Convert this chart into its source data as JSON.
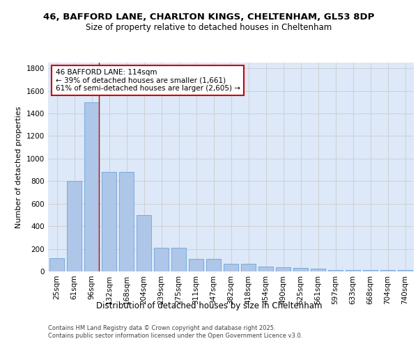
{
  "title1": "46, BAFFORD LANE, CHARLTON KINGS, CHELTENHAM, GL53 8DP",
  "title2": "Size of property relative to detached houses in Cheltenham",
  "xlabel": "Distribution of detached houses by size in Cheltenham",
  "ylabel": "Number of detached properties",
  "categories": [
    "25sqm",
    "61sqm",
    "96sqm",
    "132sqm",
    "168sqm",
    "204sqm",
    "239sqm",
    "275sqm",
    "311sqm",
    "347sqm",
    "382sqm",
    "418sqm",
    "454sqm",
    "490sqm",
    "525sqm",
    "561sqm",
    "597sqm",
    "633sqm",
    "668sqm",
    "704sqm",
    "740sqm"
  ],
  "values": [
    120,
    800,
    1500,
    880,
    880,
    500,
    210,
    210,
    110,
    110,
    65,
    65,
    45,
    35,
    30,
    25,
    10,
    10,
    10,
    10,
    10
  ],
  "bar_color": "#aec6e8",
  "bar_edge_color": "#5b9bd5",
  "vline_x_idx": 2,
  "vline_color": "#cc0000",
  "annotation_text": "46 BAFFORD LANE: 114sqm\n← 39% of detached houses are smaller (1,661)\n61% of semi-detached houses are larger (2,605) →",
  "annotation_box_color": "#ffffff",
  "annotation_box_edge": "#cc0000",
  "ylim": [
    0,
    1850
  ],
  "yticks": [
    0,
    200,
    400,
    600,
    800,
    1000,
    1200,
    1400,
    1600,
    1800
  ],
  "grid_color": "#cccccc",
  "bg_color": "#dde8f8",
  "footer": "Contains HM Land Registry data © Crown copyright and database right 2025.\nContains public sector information licensed under the Open Government Licence v3.0.",
  "title1_fontsize": 9.5,
  "title2_fontsize": 8.5,
  "xlabel_fontsize": 8.5,
  "ylabel_fontsize": 8,
  "tick_fontsize": 7.5,
  "annotation_fontsize": 7.5,
  "footer_fontsize": 6
}
